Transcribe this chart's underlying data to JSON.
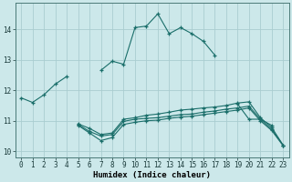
{
  "xlabel": "Humidex (Indice chaleur)",
  "bg_color": "#cce8ea",
  "grid_color": "#aacdd0",
  "line_color": "#1a6e6a",
  "x_values": [
    0,
    1,
    2,
    3,
    4,
    5,
    6,
    7,
    8,
    9,
    10,
    11,
    12,
    13,
    14,
    15,
    16,
    17,
    18,
    19,
    20,
    21,
    22,
    23
  ],
  "line1": [
    11.75,
    11.6,
    11.85,
    12.2,
    12.45,
    null,
    null,
    null,
    null,
    null,
    null,
    null,
    null,
    null,
    null,
    null,
    null,
    null,
    null,
    null,
    null,
    null,
    null,
    null
  ],
  "line1b": [
    null,
    null,
    null,
    null,
    null,
    null,
    null,
    12.65,
    12.95,
    12.85,
    14.05,
    14.1,
    14.5,
    13.85,
    14.05,
    13.85,
    13.6,
    13.15,
    null,
    11.55,
    11.05,
    11.05,
    10.85,
    null
  ],
  "line2": [
    null,
    null,
    null,
    null,
    null,
    10.9,
    10.75,
    10.55,
    10.6,
    11.05,
    11.1,
    11.18,
    11.22,
    11.28,
    11.35,
    11.38,
    11.42,
    11.45,
    11.5,
    11.58,
    11.62,
    11.1,
    10.78,
    10.2
  ],
  "line3": [
    null,
    null,
    null,
    null,
    null,
    10.88,
    10.65,
    10.5,
    10.55,
    10.98,
    11.05,
    11.08,
    11.1,
    11.15,
    11.2,
    11.22,
    11.28,
    11.32,
    11.38,
    11.42,
    11.48,
    11.05,
    10.72,
    10.2
  ],
  "line4": [
    null,
    null,
    null,
    null,
    null,
    10.85,
    10.6,
    10.35,
    10.45,
    10.88,
    10.95,
    11.0,
    11.02,
    11.08,
    11.12,
    11.15,
    11.2,
    11.25,
    11.3,
    11.35,
    11.42,
    11.0,
    10.68,
    10.18
  ],
  "ylim": [
    9.8,
    14.85
  ],
  "xlim": [
    -0.5,
    23.5
  ],
  "yticks": [
    10,
    11,
    12,
    13,
    14
  ],
  "xticks": [
    0,
    1,
    2,
    3,
    4,
    5,
    6,
    7,
    8,
    9,
    10,
    11,
    12,
    13,
    14,
    15,
    16,
    17,
    18,
    19,
    20,
    21,
    22,
    23
  ]
}
